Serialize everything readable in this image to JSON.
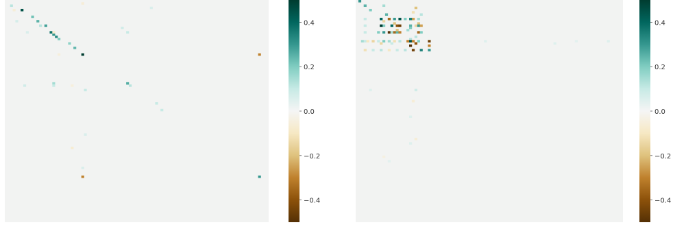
{
  "chart_data": [
    {
      "type": "heatmap",
      "title": "",
      "xlabel": "",
      "ylabel": "",
      "grid_size": 100,
      "value_range": [
        -0.5,
        0.5
      ],
      "background_value": 0.0,
      "colorscale": [
        "#543005",
        "#8c510a",
        "#bf812d",
        "#dfc27d",
        "#f6e8c3",
        "#f5f5f5",
        "#c7eae5",
        "#80cdc1",
        "#35978f",
        "#01665e",
        "#003c30"
      ],
      "colorbar": {
        "ticks": [
          0.4,
          0.2,
          0.0,
          -0.2,
          -0.4
        ],
        "tick_labels": [
          "0.4",
          "0.2",
          "0.0",
          "−0.2",
          "−0.4"
        ]
      },
      "cells": [
        {
          "row": 4,
          "col": 6,
          "value": 0.45
        },
        {
          "row": 2,
          "col": 2,
          "value": 0.12
        },
        {
          "row": 7,
          "col": 10,
          "value": 0.22
        },
        {
          "row": 9,
          "col": 12,
          "value": 0.25
        },
        {
          "row": 11,
          "col": 15,
          "value": 0.28
        },
        {
          "row": 14,
          "col": 17,
          "value": 0.38
        },
        {
          "row": 15,
          "col": 18,
          "value": 0.3
        },
        {
          "row": 16,
          "col": 19,
          "value": 0.32
        },
        {
          "row": 17,
          "col": 20,
          "value": 0.2
        },
        {
          "row": 19,
          "col": 24,
          "value": 0.18
        },
        {
          "row": 21,
          "col": 26,
          "value": 0.24
        },
        {
          "row": 24,
          "col": 29,
          "value": 0.5
        },
        {
          "row": 24,
          "col": 96,
          "value": -0.3
        },
        {
          "row": 79,
          "col": 29,
          "value": -0.3
        },
        {
          "row": 79,
          "col": 96,
          "value": 0.3
        },
        {
          "row": 37,
          "col": 46,
          "value": 0.26
        },
        {
          "row": 38,
          "col": 47,
          "value": 0.12
        },
        {
          "row": 37,
          "col": 18,
          "value": 0.15
        },
        {
          "row": 38,
          "col": 18,
          "value": 0.1
        },
        {
          "row": 14,
          "col": 18,
          "value": -0.08
        },
        {
          "row": 14,
          "col": 8,
          "value": 0.06
        },
        {
          "row": 4,
          "col": 3,
          "value": -0.06
        },
        {
          "row": 12,
          "col": 44,
          "value": 0.08
        },
        {
          "row": 14,
          "col": 46,
          "value": 0.1
        },
        {
          "row": 38,
          "col": 7,
          "value": 0.08
        },
        {
          "row": 40,
          "col": 30,
          "value": 0.1
        },
        {
          "row": 46,
          "col": 57,
          "value": 0.1
        },
        {
          "row": 49,
          "col": 59,
          "value": 0.1
        },
        {
          "row": 9,
          "col": 4,
          "value": 0.07
        },
        {
          "row": 11,
          "col": 13,
          "value": 0.12
        },
        {
          "row": 1,
          "col": 29,
          "value": -0.06
        },
        {
          "row": 3,
          "col": 55,
          "value": 0.06
        },
        {
          "row": 24,
          "col": 20,
          "value": -0.05
        },
        {
          "row": 38,
          "col": 25,
          "value": -0.05
        },
        {
          "row": 60,
          "col": 30,
          "value": 0.06
        },
        {
          "row": 66,
          "col": 25,
          "value": -0.07
        },
        {
          "row": 75,
          "col": 29,
          "value": 0.06
        }
      ]
    },
    {
      "type": "heatmap",
      "title": "",
      "xlabel": "",
      "ylabel": "",
      "grid_size": 100,
      "value_range": [
        -0.5,
        0.5
      ],
      "background_value": 0.0,
      "colorscale": [
        "#543005",
        "#8c510a",
        "#bf812d",
        "#dfc27d",
        "#f6e8c3",
        "#f5f5f5",
        "#c7eae5",
        "#80cdc1",
        "#35978f",
        "#01665e",
        "#003c30"
      ],
      "colorbar": {
        "ticks": [
          0.4,
          0.2,
          0.0,
          -0.2,
          -0.4
        ],
        "tick_labels": [
          "0.4",
          "0.2",
          "0.0",
          "−0.2",
          "−0.4"
        ]
      },
      "cells": [
        {
          "row": 0,
          "col": 1,
          "value": 0.3
        },
        {
          "row": 2,
          "col": 3,
          "value": 0.25
        },
        {
          "row": 2,
          "col": 10,
          "value": 0.15
        },
        {
          "row": 3,
          "col": 22,
          "value": -0.2
        },
        {
          "row": 4,
          "col": 5,
          "value": 0.2
        },
        {
          "row": 6,
          "col": 11,
          "value": 0.25
        },
        {
          "row": 8,
          "col": 21,
          "value": -0.25
        },
        {
          "row": 8,
          "col": 3,
          "value": 0.1
        },
        {
          "row": 9,
          "col": 10,
          "value": -0.15
        },
        {
          "row": 8,
          "col": 14,
          "value": 0.3
        },
        {
          "row": 8,
          "col": 18,
          "value": 0.2
        },
        {
          "row": 8,
          "col": 23,
          "value": 0.15
        },
        {
          "row": 10,
          "col": 14,
          "value": -0.2
        },
        {
          "row": 10,
          "col": 23,
          "value": -0.2
        },
        {
          "row": 11,
          "col": 3,
          "value": 0.1
        },
        {
          "row": 11,
          "col": 10,
          "value": 0.2
        },
        {
          "row": 11,
          "col": 20,
          "value": 0.25
        },
        {
          "row": 11,
          "col": 22,
          "value": -0.15
        },
        {
          "row": 8,
          "col": 9,
          "value": 0.4
        },
        {
          "row": 8,
          "col": 12,
          "value": -0.35
        },
        {
          "row": 8,
          "col": 16,
          "value": 0.45
        },
        {
          "row": 8,
          "col": 20,
          "value": 0.35
        },
        {
          "row": 11,
          "col": 9,
          "value": 0.5
        },
        {
          "row": 11,
          "col": 13,
          "value": 0.4
        },
        {
          "row": 11,
          "col": 15,
          "value": -0.4
        },
        {
          "row": 11,
          "col": 16,
          "value": -0.45
        },
        {
          "row": 11,
          "col": 23,
          "value": 0.3
        },
        {
          "row": 11,
          "col": 24,
          "value": -0.25
        },
        {
          "row": 14,
          "col": 3,
          "value": 0.1
        },
        {
          "row": 14,
          "col": 8,
          "value": 0.2
        },
        {
          "row": 14,
          "col": 10,
          "value": 0.3
        },
        {
          "row": 14,
          "col": 12,
          "value": -0.5
        },
        {
          "row": 14,
          "col": 13,
          "value": 0.15
        },
        {
          "row": 14,
          "col": 14,
          "value": -0.35
        },
        {
          "row": 14,
          "col": 15,
          "value": 0.25
        },
        {
          "row": 14,
          "col": 16,
          "value": -0.3
        },
        {
          "row": 14,
          "col": 23,
          "value": -0.35
        },
        {
          "row": 14,
          "col": 24,
          "value": 0.2
        },
        {
          "row": 13,
          "col": 15,
          "value": -0.2
        },
        {
          "row": 12,
          "col": 20,
          "value": 0.2
        },
        {
          "row": 13,
          "col": 19,
          "value": 0.15
        },
        {
          "row": 5,
          "col": 21,
          "value": -0.12
        },
        {
          "row": 6,
          "col": 24,
          "value": 0.12
        },
        {
          "row": 16,
          "col": 22,
          "value": 0.12
        },
        {
          "row": 17,
          "col": 20,
          "value": 0.12
        },
        {
          "row": 18,
          "col": 2,
          "value": 0.15
        },
        {
          "row": 18,
          "col": 3,
          "value": 0.1
        },
        {
          "row": 18,
          "col": 4,
          "value": -0.1
        },
        {
          "row": 18,
          "col": 6,
          "value": -0.15
        },
        {
          "row": 18,
          "col": 8,
          "value": 0.1
        },
        {
          "row": 18,
          "col": 10,
          "value": 0.2
        },
        {
          "row": 18,
          "col": 12,
          "value": 0.15
        },
        {
          "row": 18,
          "col": 14,
          "value": -0.12
        },
        {
          "row": 18,
          "col": 16,
          "value": 0.12
        },
        {
          "row": 18,
          "col": 19,
          "value": -0.3
        },
        {
          "row": 18,
          "col": 20,
          "value": 0.45
        },
        {
          "row": 18,
          "col": 21,
          "value": -0.3
        },
        {
          "row": 18,
          "col": 23,
          "value": 0.2
        },
        {
          "row": 18,
          "col": 27,
          "value": -0.45
        },
        {
          "row": 19,
          "col": 22,
          "value": -0.4
        },
        {
          "row": 20,
          "col": 20,
          "value": -0.5
        },
        {
          "row": 20,
          "col": 27,
          "value": -0.3
        },
        {
          "row": 19,
          "col": 9,
          "value": -0.15
        },
        {
          "row": 19,
          "col": 13,
          "value": 0.1
        },
        {
          "row": 22,
          "col": 3,
          "value": -0.12
        },
        {
          "row": 22,
          "col": 6,
          "value": 0.1
        },
        {
          "row": 22,
          "col": 9,
          "value": 0.12
        },
        {
          "row": 22,
          "col": 12,
          "value": -0.1
        },
        {
          "row": 22,
          "col": 15,
          "value": 0.1
        },
        {
          "row": 22,
          "col": 18,
          "value": 0.12
        },
        {
          "row": 22,
          "col": 21,
          "value": -0.45
        },
        {
          "row": 22,
          "col": 24,
          "value": 0.35
        },
        {
          "row": 22,
          "col": 27,
          "value": 0.3
        },
        {
          "row": 18,
          "col": 48,
          "value": 0.05
        },
        {
          "row": 19,
          "col": 74,
          "value": 0.05
        },
        {
          "row": 18,
          "col": 82,
          "value": 0.04
        },
        {
          "row": 18,
          "col": 94,
          "value": 0.05
        },
        {
          "row": 40,
          "col": 22,
          "value": 0.08
        },
        {
          "row": 45,
          "col": 21,
          "value": -0.06
        },
        {
          "row": 52,
          "col": 20,
          "value": 0.05
        },
        {
          "row": 62,
          "col": 22,
          "value": -0.06
        },
        {
          "row": 64,
          "col": 20,
          "value": 0.05
        },
        {
          "row": 40,
          "col": 5,
          "value": 0.05
        },
        {
          "row": 70,
          "col": 10,
          "value": -0.04
        },
        {
          "row": 72,
          "col": 12,
          "value": 0.04
        }
      ]
    }
  ]
}
